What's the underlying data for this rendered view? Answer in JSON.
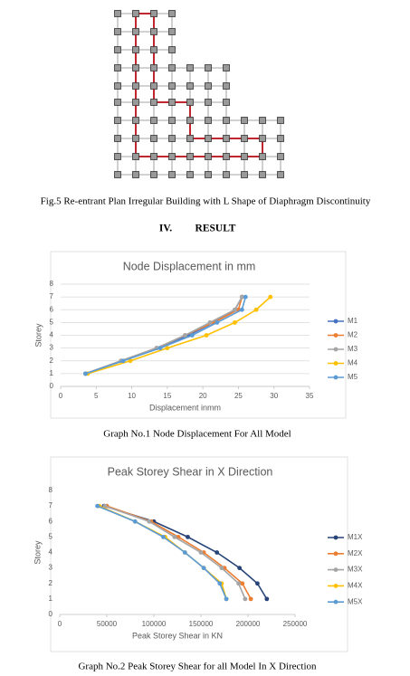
{
  "figure_caption": "Fig.5 Re-entrant Plan Irregular Building with L Shape of Diaphragm Discontinuity",
  "section_number": "IV.",
  "section_title": "RESULT",
  "chart_data": [
    {
      "type": "line",
      "title": "Node Displacement in mm",
      "caption": "Graph No.1  Node Displacement For All Model",
      "x_label": "Displacement inmm",
      "y_label": "Storey",
      "xlim": [
        0,
        35
      ],
      "xticks": [
        0,
        5,
        10,
        15,
        20,
        25,
        30,
        35
      ],
      "ylim": [
        0,
        8
      ],
      "yticks": [
        0,
        1,
        2,
        3,
        4,
        5,
        6,
        7,
        8
      ],
      "grid": true,
      "legend": "right",
      "series": [
        {
          "name": "M1",
          "color": "#4472c4",
          "x": [
            3.5,
            8.5,
            13.5,
            18,
            21.5,
            24.5,
            25.5
          ],
          "y": [
            1,
            2,
            3,
            4,
            5,
            6,
            7
          ]
        },
        {
          "name": "M2",
          "color": "#ed7d31",
          "x": [
            3.5,
            8.5,
            13.5,
            17.5,
            21.5,
            25,
            25.5
          ],
          "y": [
            1,
            2,
            3,
            4,
            5,
            6,
            7
          ]
        },
        {
          "name": "M3",
          "color": "#a5a5a5",
          "x": [
            3.5,
            8.5,
            13.5,
            17.5,
            21,
            24.5,
            25.5
          ],
          "y": [
            1,
            2,
            3,
            4,
            5,
            6,
            7
          ]
        },
        {
          "name": "M4",
          "color": "#ffc000",
          "x": [
            3.8,
            9.8,
            15,
            20.5,
            24.5,
            27.5,
            29.5
          ],
          "y": [
            1,
            2,
            3,
            4,
            5,
            6,
            7
          ]
        },
        {
          "name": "M5",
          "color": "#5b9bd5",
          "x": [
            3.5,
            8.8,
            14,
            18.5,
            22,
            25.5,
            26
          ],
          "y": [
            1,
            2,
            3,
            4,
            5,
            6,
            7
          ]
        }
      ]
    },
    {
      "type": "line",
      "title": "Peak Storey Shear in X Direction",
      "caption": "Graph No.2 Peak Storey Shear for all Model In X Direction",
      "x_label": "Peak Storey Shear in KN",
      "y_label": "Storey",
      "xlim": [
        0,
        250000
      ],
      "xticks": [
        0,
        50000,
        100000,
        150000,
        200000,
        250000
      ],
      "ylim": [
        0,
        8
      ],
      "yticks": [
        0,
        1,
        2,
        3,
        4,
        5,
        6,
        7,
        8
      ],
      "grid": false,
      "legend": "right",
      "series": [
        {
          "name": "M1X",
          "color": "#264478",
          "x": [
            220000,
            210000,
            191000,
            167000,
            136000,
            100000,
            47000
          ],
          "y": [
            1,
            2,
            3,
            4,
            5,
            6,
            7
          ]
        },
        {
          "name": "M2X",
          "color": "#ed7d31",
          "x": [
            203000,
            194000,
            175000,
            153000,
            126000,
            97000,
            50000
          ],
          "y": [
            1,
            2,
            3,
            4,
            5,
            6,
            7
          ]
        },
        {
          "name": "M3X",
          "color": "#a5a5a5",
          "x": [
            197000,
            190000,
            172000,
            150000,
            122000,
            95000,
            48000
          ],
          "y": [
            1,
            2,
            3,
            4,
            5,
            6,
            7
          ]
        },
        {
          "name": "M4X",
          "color": "#ffc000",
          "x": [
            177000,
            172000,
            153000,
            133000,
            112000,
            80000,
            42000
          ],
          "y": [
            1,
            2,
            3,
            4,
            5,
            6,
            7
          ]
        },
        {
          "name": "M5X",
          "color": "#5b9bd5",
          "x": [
            177000,
            170000,
            153000,
            133000,
            110000,
            80000,
            40000
          ],
          "y": [
            1,
            2,
            3,
            4,
            5,
            6,
            7
          ]
        }
      ]
    }
  ]
}
